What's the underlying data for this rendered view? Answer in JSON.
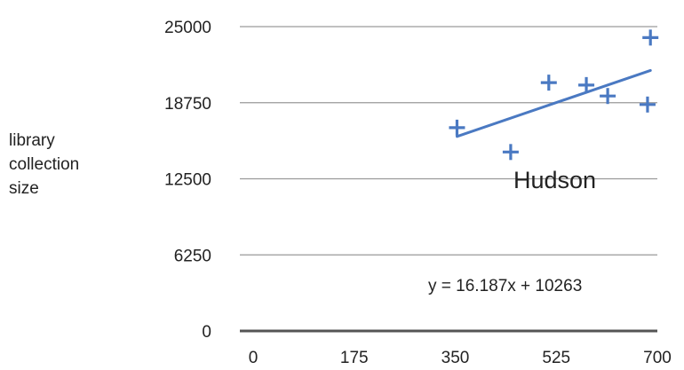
{
  "chart_data": {
    "type": "scatter",
    "ylabel_lines": [
      "library",
      "collection",
      "size"
    ],
    "xlabel": "",
    "xlim": [
      0,
      700
    ],
    "ylim": [
      0,
      25000
    ],
    "x_ticks": [
      "0",
      "175",
      "350",
      "525",
      "700"
    ],
    "y_ticks": [
      "0",
      "6250",
      "12500",
      "18750",
      "25000"
    ],
    "grid": "horizontal",
    "series": [
      {
        "marker": "plus",
        "color": "#4a79c2",
        "points": [
          {
            "x": 353,
            "y": 16700
          },
          {
            "x": 446,
            "y": 14700
          },
          {
            "x": 512,
            "y": 20400
          },
          {
            "x": 577,
            "y": 20200
          },
          {
            "x": 614,
            "y": 19300
          },
          {
            "x": 683,
            "y": 18600
          },
          {
            "x": 688,
            "y": 24100
          }
        ]
      }
    ],
    "trendline": {
      "equation_text": "y = 16.187x + 10263",
      "slope": 16.187,
      "intercept": 10263,
      "x_range": [
        353,
        688
      ],
      "color": "#4a79c2"
    },
    "annotation": "Hudson"
  }
}
